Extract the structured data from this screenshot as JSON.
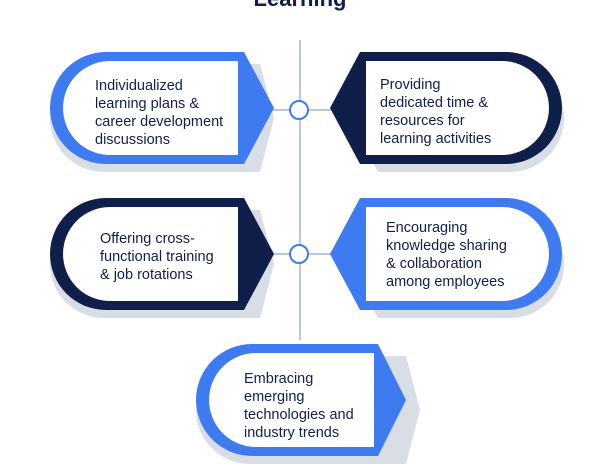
{
  "title": "Learning",
  "colors": {
    "blue": "#3f7bf0",
    "navy": "#0f1f4a",
    "line": "#b9c6e0",
    "shadow": "#d9dde6"
  },
  "cards": [
    {
      "id": "c1",
      "text": "Individualized\nlearning plans &\ncareer development\ndiscussions",
      "color": "blue"
    },
    {
      "id": "c2",
      "text": "Providing\ndedicated time &\nresources for\nlearning activities",
      "color": "navy"
    },
    {
      "id": "c3",
      "text": "Offering cross-\nfunctional training\n& job rotations",
      "color": "navy"
    },
    {
      "id": "c4",
      "text": "Encouraging\nknowledge sharing\n& collaboration\namong employees",
      "color": "blue"
    },
    {
      "id": "c5",
      "text": "Embracing\nemerging\ntechnologies and\nindustry trends",
      "color": "blue"
    }
  ]
}
